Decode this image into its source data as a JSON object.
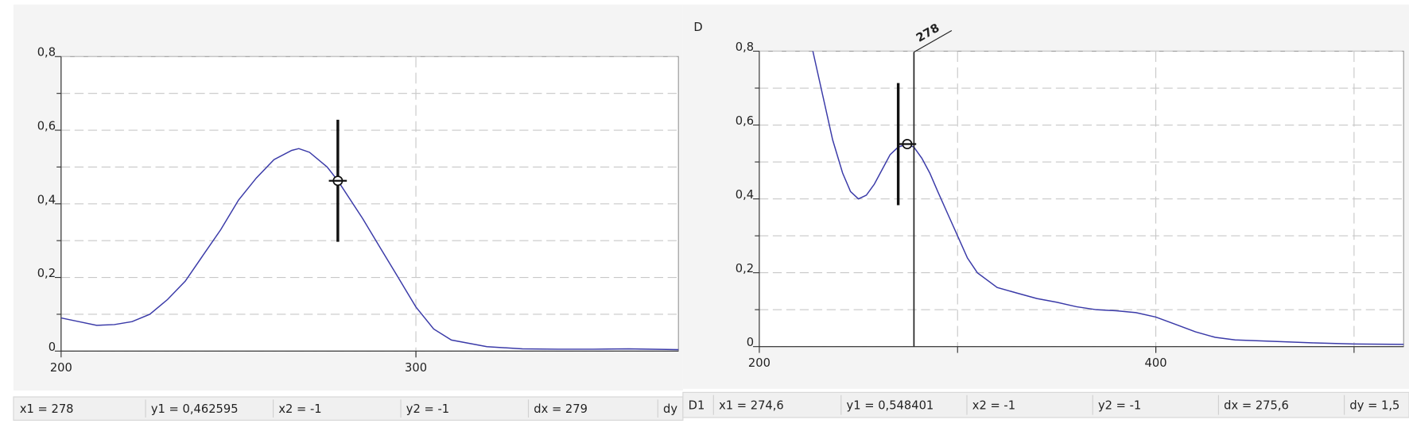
{
  "chart_data": [
    {
      "type": "line",
      "color": "#3a3aa8",
      "x": [
        200,
        205,
        210,
        215,
        220,
        225,
        230,
        235,
        240,
        245,
        250,
        255,
        260,
        265,
        267,
        270,
        275,
        278,
        285,
        290,
        295,
        300,
        305,
        310,
        320,
        330,
        340,
        350,
        360,
        374
      ],
      "values": [
        0.09,
        0.08,
        0.07,
        0.072,
        0.08,
        0.1,
        0.14,
        0.19,
        0.26,
        0.33,
        0.41,
        0.47,
        0.52,
        0.545,
        0.55,
        0.54,
        0.5,
        0.462595,
        0.36,
        0.28,
        0.2,
        0.12,
        0.06,
        0.03,
        0.012,
        0.006,
        0.005,
        0.005,
        0.006,
        0.004
      ],
      "xlim": [
        200,
        374
      ],
      "ylim": [
        0,
        0.8
      ],
      "xticks": [
        200,
        300
      ],
      "xgrid": [
        300
      ],
      "yticks": [
        0,
        {
          "value": 0.2,
          "label": "0,2"
        },
        {
          "value": 0.4,
          "label": "0,4"
        },
        {
          "value": 0.6,
          "label": "0,6"
        },
        {
          "value": 0.8,
          "label": "0,8"
        }
      ],
      "y_minor_ticks": [
        0.1,
        0.3,
        0.5,
        0.7
      ],
      "grid": true,
      "cursor": {
        "x": 278,
        "y": 0.462595
      }
    },
    {
      "type": "line",
      "color": "#3a3aa8",
      "title": "D",
      "x": [
        227,
        232,
        237,
        242,
        246,
        250,
        254,
        258,
        262,
        266,
        270,
        274.6,
        278,
        282,
        286,
        290,
        295,
        300,
        305,
        310,
        320,
        330,
        340,
        350,
        360,
        370,
        380,
        390,
        400,
        410,
        420,
        430,
        440,
        460,
        480,
        500,
        525
      ],
      "values": [
        0.8,
        0.68,
        0.56,
        0.47,
        0.42,
        0.4,
        0.41,
        0.44,
        0.48,
        0.52,
        0.54,
        0.548401,
        0.54,
        0.51,
        0.47,
        0.42,
        0.36,
        0.3,
        0.24,
        0.2,
        0.16,
        0.145,
        0.13,
        0.12,
        0.108,
        0.1,
        0.097,
        0.092,
        0.08,
        0.06,
        0.04,
        0.025,
        0.018,
        0.014,
        0.01,
        0.007,
        0.006
      ],
      "xlim": [
        200,
        525
      ],
      "ylim": [
        0,
        0.8
      ],
      "xticks": [
        200,
        400
      ],
      "xgrid": [
        300,
        400,
        500
      ],
      "yticks": [
        0,
        {
          "value": 0.2,
          "label": "0,2"
        },
        {
          "value": 0.4,
          "label": "0,4"
        },
        {
          "value": 0.6,
          "label": "0,6"
        },
        {
          "value": 0.8,
          "label": "0,8"
        }
      ],
      "y_minor_ticks": [
        0.1,
        0.3,
        0.5,
        0.7
      ],
      "grid": true,
      "cursor": {
        "x": 274.6,
        "y": 0.548401
      },
      "marker_line": 278
    }
  ],
  "status_bars": [
    [
      "x1 = 278",
      "y1 = 0,462595",
      "x2 = -1",
      "y2 = -1",
      "dx = 279",
      "dy"
    ],
    [
      "D1",
      "x1 = 274,6",
      "y1 = 0,548401",
      "x2 = -1",
      "y2 = -1",
      "dx = 275,6",
      "dy = 1,5"
    ]
  ]
}
